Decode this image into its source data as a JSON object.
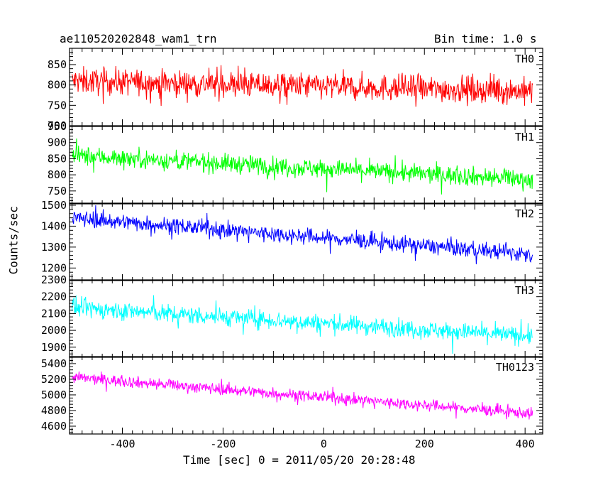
{
  "header": {
    "title": "ae110520202848_wam1_trn",
    "bin_time": "Bin time: 1.0 s"
  },
  "axes": {
    "xlabel": "Time [sec] 0 = 2011/05/20 20:28:48",
    "ylabel": "Counts/sec"
  },
  "chart_data": {
    "type": "line",
    "title": "ae110520202848_wam1_trn",
    "subtitle": "Bin time: 1.0 s",
    "xlabel": "Time [sec] 0 = 2011/05/20 20:28:48",
    "ylabel": "Counts/sec",
    "xlim": [
      -505,
      435
    ],
    "x_ticks": [
      -400,
      -200,
      0,
      200,
      400
    ],
    "x_start": -500,
    "x_end": 415,
    "bin": 1.0,
    "grid": false,
    "panels": [
      {
        "name": "TH0",
        "color": "#ff0000",
        "ylim": [
          700,
          890
        ],
        "y_ticks": [
          700,
          750,
          800,
          850
        ],
        "trend_start": 810,
        "trend_end": 785,
        "noise_amplitude": 42,
        "max_value": 890,
        "min_value": 700
      },
      {
        "name": "TH1",
        "color": "#00ff00",
        "ylim": [
          710,
          950
        ],
        "y_ticks": [
          750,
          800,
          850,
          900,
          950
        ],
        "trend_start": 860,
        "trend_end": 785,
        "noise_amplitude": 38,
        "max_value": 950,
        "min_value": 710
      },
      {
        "name": "TH2",
        "color": "#0000ff",
        "ylim": [
          1140,
          1510
        ],
        "y_ticks": [
          1200,
          1300,
          1400,
          1500
        ],
        "trend_start": 1440,
        "trend_end": 1265,
        "noise_amplitude": 50,
        "max_value": 1510,
        "min_value": 1140
      },
      {
        "name": "TH3",
        "color": "#00ffff",
        "ylim": [
          1840,
          2300
        ],
        "y_ticks": [
          1900,
          2000,
          2100,
          2200,
          2300
        ],
        "trend_start": 2135,
        "trend_end": 1965,
        "noise_amplitude": 70,
        "max_value": 2300,
        "min_value": 1840
      },
      {
        "name": "TH0123",
        "color": "#ff00ff",
        "ylim": [
          4500,
          5490
        ],
        "y_ticks": [
          4600,
          4800,
          5000,
          5200,
          5400
        ],
        "trend_start": 5225,
        "trend_end": 4760,
        "noise_amplitude": 95,
        "max_value": 5490,
        "min_value": 4500
      }
    ]
  }
}
